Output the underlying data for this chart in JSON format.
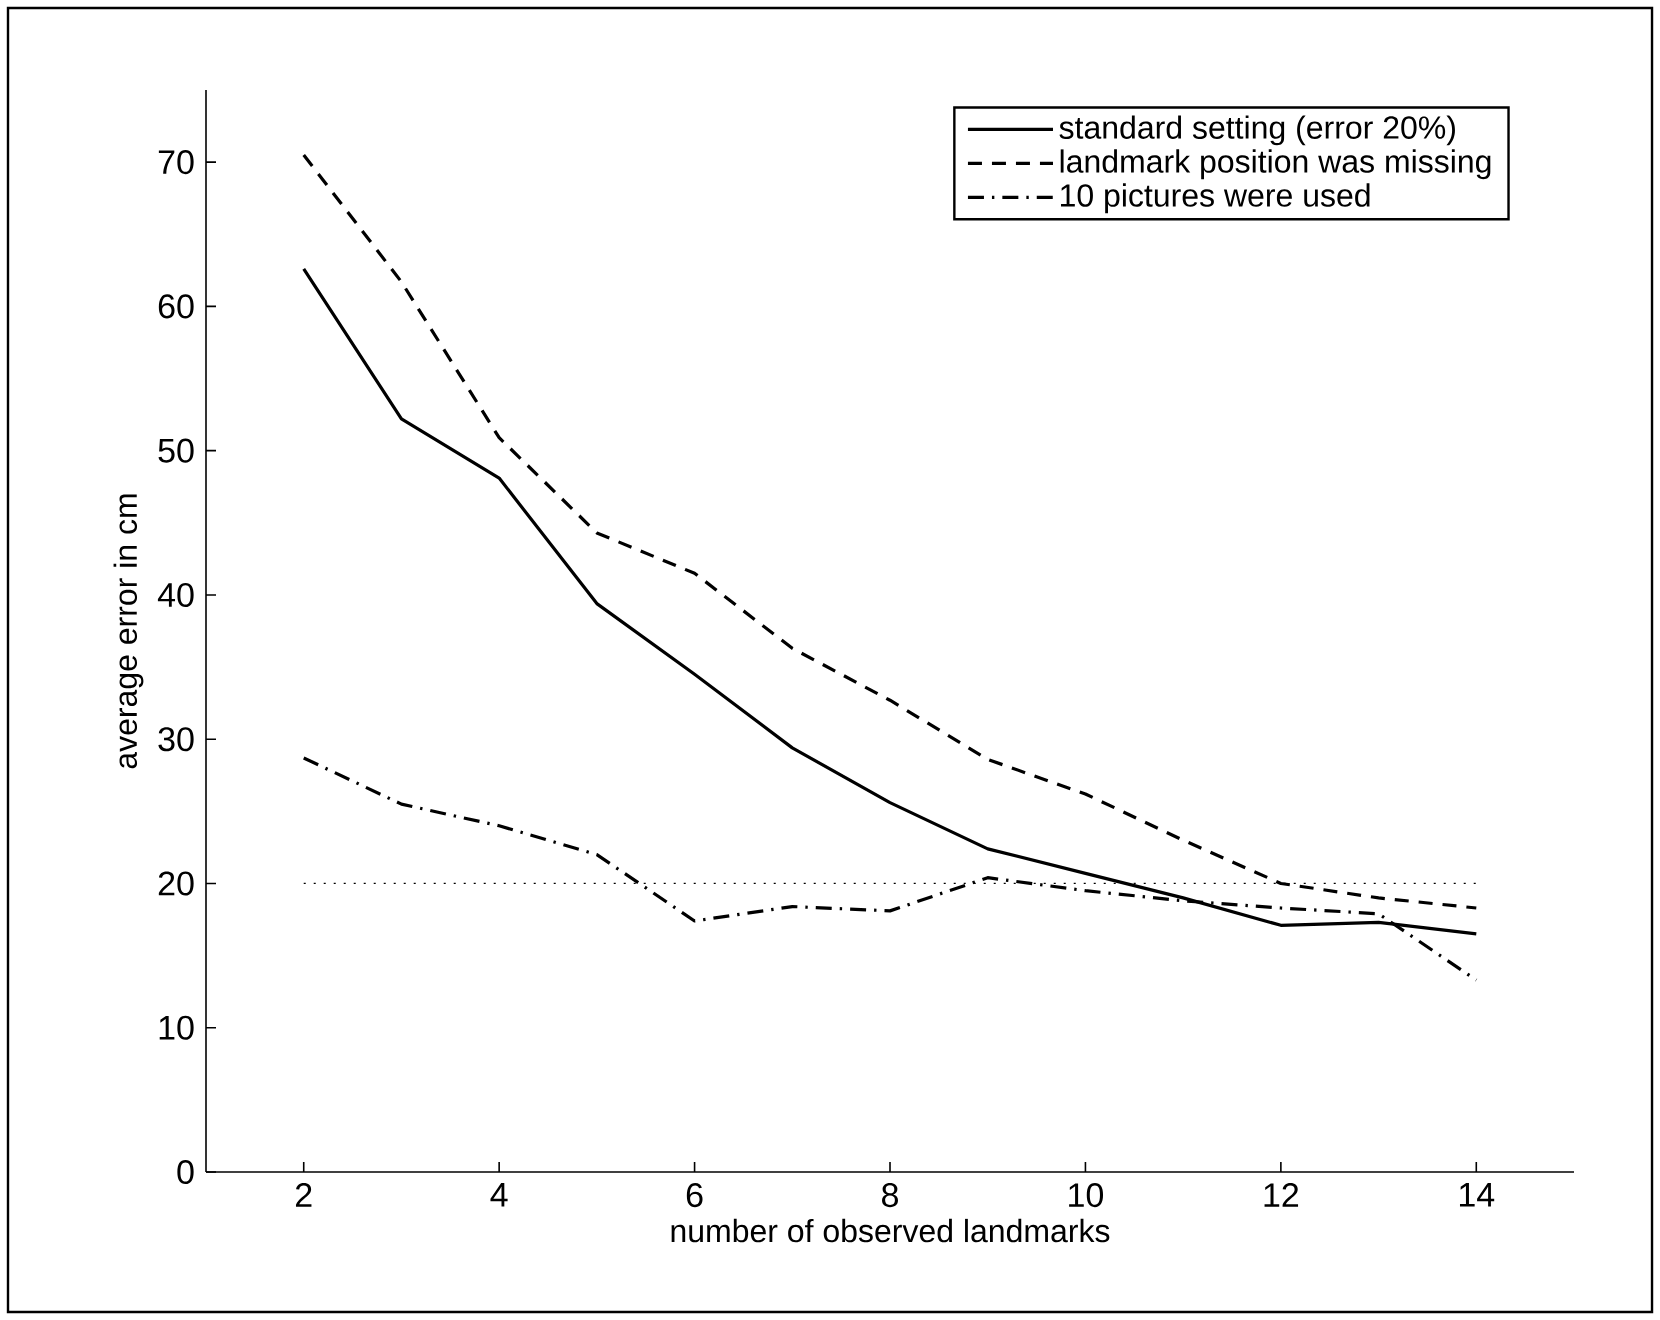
{
  "chart_data": {
    "type": "line",
    "xlabel": "number of observed landmarks",
    "ylabel": "average error in cm",
    "x": [
      2,
      3,
      4,
      5,
      6,
      7,
      8,
      9,
      10,
      11,
      12,
      13,
      14
    ],
    "series": [
      {
        "name": "standard setting (error 20%)",
        "color": "#000000",
        "line_style": "solid",
        "values": [
          62.6,
          52.2,
          48.1,
          39.4,
          34.5,
          29.4,
          25.6,
          22.4,
          20.7,
          19.0,
          17.1,
          17.3,
          16.5
        ]
      },
      {
        "name": "landmark position was missing",
        "color": "#000000",
        "line_style": "dashed",
        "values": [
          70.5,
          61.7,
          50.9,
          44.3,
          41.5,
          36.3,
          32.7,
          28.6,
          26.2,
          23.0,
          20.0,
          19.0,
          18.3
        ]
      },
      {
        "name": "10 pictures were used",
        "color": "#000000",
        "line_style": "dashdot",
        "values": [
          28.7,
          25.5,
          24.0,
          22.0,
          17.4,
          18.4,
          18.1,
          20.4,
          19.5,
          18.8,
          18.3,
          17.9,
          13.3
        ]
      }
    ],
    "ref_lines": [
      {
        "axis": "y",
        "value": 20,
        "color": "#000000",
        "line_style": "dotted"
      }
    ],
    "xlim": [
      1,
      15
    ],
    "ylim": [
      0,
      75
    ],
    "xticks": [
      2,
      4,
      6,
      8,
      10,
      12,
      14
    ],
    "yticks": [
      0,
      10,
      20,
      30,
      40,
      50,
      60,
      70
    ],
    "grid": false,
    "legend": "top right",
    "marker": "none"
  }
}
